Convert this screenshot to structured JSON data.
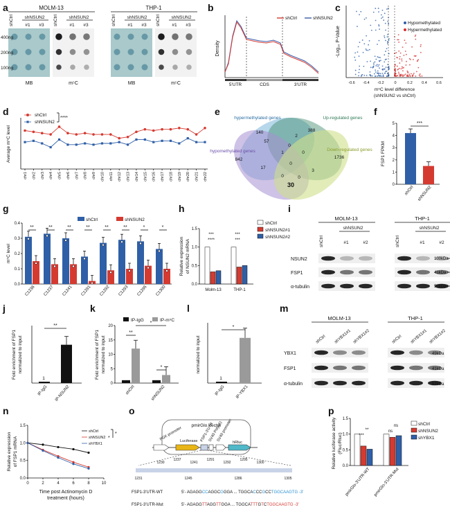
{
  "panels": {
    "a": {
      "letter": "a",
      "groups": [
        "MOLM-13",
        "THP-1"
      ],
      "sub_header": "shNSUN2",
      "lanes": [
        "shCtrl",
        "#1",
        "#3"
      ],
      "rows": [
        "400ng",
        "200ng",
        "100ng"
      ],
      "stains": [
        "MB",
        "m⁵C"
      ]
    },
    "b": {
      "letter": "b",
      "ylabel": "Density",
      "legend": [
        "shCtrl",
        "shNSUN2"
      ],
      "regions": [
        "5'UTR",
        "CDS",
        "3'UTR"
      ]
    },
    "c": {
      "letter": "c",
      "ylabel": "-Log₁₀ P-Value",
      "xlabel1": "m⁵C level difference",
      "xlabel2": "(shNSUN2 vs shCtrl)",
      "legend": [
        "Hypomethylated",
        "Hypermethylated"
      ],
      "ticks": [
        "-0.6",
        "-0.4",
        "-0.2",
        "0",
        "0.2",
        "0.4",
        "0.6"
      ],
      "colors": {
        "hypo": "#2d5fa8",
        "hyper": "#d62f2f"
      }
    },
    "d": {
      "letter": "d",
      "ylabel": "Average m⁵C level",
      "legend": [
        "shCtrl",
        "shNSUN2"
      ],
      "sig": "****",
      "chart_data": {
        "type": "line",
        "categories": [
          "chr1",
          "chr2",
          "chr3",
          "chr4",
          "chr5",
          "chr6",
          "chr7",
          "chr8",
          "chr9",
          "chr10",
          "chr11",
          "chr12",
          "chr13",
          "chr14",
          "chr15",
          "chr16",
          "chr17",
          "chr18",
          "chr19",
          "chr20",
          "chr21",
          "chr22"
        ],
        "series": [
          {
            "name": "shCtrl",
            "values": [
              0.3,
              0.29,
              0.28,
              0.27,
              0.33,
              0.28,
              0.27,
              0.28,
              0.27,
              0.27,
              0.27,
              0.24,
              0.25,
              0.29,
              0.31,
              0.3,
              0.31,
              0.31,
              0.32,
              0.31,
              0.27,
              0.32
            ]
          },
          {
            "name": "shNSUN2",
            "values": [
              0.21,
              0.22,
              0.2,
              0.17,
              0.23,
              0.19,
              0.19,
              0.2,
              0.19,
              0.2,
              0.2,
              0.21,
              0.19,
              0.23,
              0.23,
              0.21,
              0.22,
              0.22,
              0.2,
              0.24,
              0.21,
              0.21
            ]
          }
        ]
      }
    },
    "e": {
      "letter": "e",
      "sets": [
        "hypermethylated genes",
        "Up-regulated genes",
        "hypomethylated genes",
        "Down-regulated genes"
      ],
      "numbers": [
        "140",
        "388",
        "57",
        "2",
        "0",
        "842",
        "1",
        "0",
        "1736",
        "17",
        "0",
        "0",
        "3",
        "0",
        "30"
      ]
    },
    "f": {
      "letter": "f",
      "ylabel": "FSP1 FPKM",
      "sig": "***",
      "chart_data": {
        "type": "bar",
        "categories": [
          "shCtrl",
          "shNSUN2"
        ],
        "values": [
          4.2,
          1.5
        ],
        "ylim": [
          0,
          5
        ],
        "yticks": [
          "0",
          "1",
          "2",
          "3",
          "4",
          "5"
        ]
      }
    },
    "g": {
      "letter": "g",
      "ylabel": "m⁵C level",
      "legend": [
        "shCtrl",
        "shNSUN2"
      ],
      "sig": [
        "**",
        "**",
        "**",
        "**",
        "**",
        "**",
        "*",
        "*"
      ],
      "chart_data": {
        "type": "bar",
        "categories": [
          "C1236",
          "C1237",
          "C1241",
          "C1291",
          "C1292",
          "C1293",
          "C1295",
          "C1300"
        ],
        "series": [
          {
            "name": "shCtrl",
            "values": [
              0.31,
              0.33,
              0.3,
              0.18,
              0.27,
              0.29,
              0.28,
              0.23
            ]
          },
          {
            "name": "shNSUN2",
            "values": [
              0.15,
              0.13,
              0.13,
              0.02,
              0.09,
              0.1,
              0.12,
              0.1
            ]
          }
        ],
        "ylim": [
          0,
          0.4
        ],
        "yticks": [
          "0.0",
          "0.1",
          "0.2",
          "0.3",
          "0.4"
        ]
      }
    },
    "h": {
      "letter": "h",
      "ylabel1": "Relative expression",
      "ylabel2": "of NSUN2 mRNA",
      "legend": [
        "shCtrl",
        "shNSUN2#1",
        "shNSUN2#2"
      ],
      "sig_top": [
        "***",
        "****",
        "***",
        "***"
      ],
      "chart_data": {
        "type": "bar",
        "categories": [
          "Molm-13",
          "THP-1"
        ],
        "series": [
          {
            "name": "shCtrl",
            "values": [
              1.0,
              1.0
            ]
          },
          {
            "name": "shNSUN2#1",
            "values": [
              0.33,
              0.46
            ]
          },
          {
            "name": "shNSUN2#2",
            "values": [
              0.36,
              0.5
            ]
          }
        ],
        "ylim": [
          0,
          1.5
        ],
        "yticks": [
          "0.0",
          "0.5",
          "1.0",
          "1.5"
        ]
      }
    },
    "i": {
      "letter": "i",
      "groups": [
        "MOLM-13",
        "THP-1"
      ],
      "sub_header": "shNSUN2",
      "lanes": [
        "shCtrl",
        "#1",
        "#2"
      ],
      "rows": [
        "NSUN2",
        "FSP1",
        "α-tubulin"
      ],
      "sizes": [
        "100kDa",
        "41kDa",
        "52kDa"
      ]
    },
    "j": {
      "letter": "j",
      "ylabel1": "Fold enrichment of FSP1",
      "ylabel2": "normalized to input",
      "sig": "**",
      "bar_label": "1",
      "chart_data": {
        "type": "bar",
        "categories": [
          "IP-IgG",
          "IP-NSUN2"
        ],
        "values": [
          1,
          160
        ]
      }
    },
    "k": {
      "letter": "k",
      "ylabel1": "Fold enrichment of FSP1",
      "ylabel2": "normalized to input",
      "legend": [
        "IP-IgG",
        "IP-m⁵C"
      ],
      "sig": [
        "**",
        "*",
        "*"
      ],
      "chart_data": {
        "type": "bar",
        "categories": [
          "shCtrl",
          "shNSUN2"
        ],
        "series": [
          {
            "name": "IP-IgG",
            "values": [
              1,
              1
            ]
          },
          {
            "name": "IP-m⁵C",
            "values": [
              12,
              2.8
            ]
          }
        ],
        "ylim": [
          0,
          20
        ],
        "yticks": [
          "0",
          "5",
          "10",
          "15",
          "20"
        ]
      }
    },
    "l": {
      "letter": "l",
      "ylabel": "normalized to input",
      "sig": "*",
      "bar_label": "1",
      "chart_data": {
        "type": "bar",
        "categories": [
          "IP-IgG",
          "IP-YBX1"
        ],
        "values": [
          1,
          195
        ]
      }
    },
    "m": {
      "letter": "m",
      "groups": [
        "MOLM-13",
        "THP-1"
      ],
      "lanes": [
        "shCtrl",
        "shYBX1#1",
        "shYBX1#2"
      ],
      "rows": [
        "YBX1",
        "FSP1",
        "α-tubulin"
      ],
      "sizes": [
        "49kDa",
        "41kDa",
        "52kDa"
      ]
    },
    "n": {
      "letter": "n",
      "ylabel1": "Relative expression",
      "ylabel2": "of FSP1 mRNA",
      "xlabel1": "Time post Actinomycin D",
      "xlabel2": "treatment (hours)",
      "legend": [
        "shCtrl",
        "shNSUN2",
        "shYBX1"
      ],
      "sig": [
        "*",
        "*"
      ],
      "chart_data": {
        "type": "line",
        "x": [
          0,
          2,
          4,
          6,
          8
        ],
        "series": [
          {
            "name": "shCtrl",
            "values": [
              1.0,
              0.95,
              0.88,
              0.82,
              0.72
            ]
          },
          {
            "name": "shNSUN2",
            "values": [
              1.0,
              0.8,
              0.62,
              0.45,
              0.31
            ]
          },
          {
            "name": "shYBX1",
            "values": [
              1.0,
              0.78,
              0.58,
              0.4,
              0.27
            ]
          }
        ],
        "ylim": [
          0,
          1.5
        ],
        "yticks": [
          "0.0",
          "0.5",
          "1.0",
          "1.5"
        ],
        "xticks": [
          "0",
          "2",
          "4",
          "6",
          "8",
          "10"
        ]
      }
    },
    "o": {
      "letter": "o",
      "vector": "pmirGlo Vector",
      "elements": [
        "PGK promoter",
        "Luciferase",
        "FSP1-3'UTR",
        "SV40 Poly(A)",
        "SV40 promoter",
        "hRluc"
      ],
      "positions_top": [
        "1230",
        "1237",
        "1241",
        "1291",
        "1292",
        "1295",
        "1300"
      ],
      "positions_bottom": [
        "1231",
        "1245",
        "1286",
        "1305"
      ],
      "wt_label": "FSP1-3'UTR-WT",
      "wt_seq": [
        "5'- AGAGG",
        "CC",
        "AGGC",
        "G",
        "GGA ... TGGCA",
        "C",
        "CC",
        "G",
        "CC",
        "TGGCAAGTG -3'"
      ],
      "mut_label": "FSP1-3'UTR-Mut",
      "mut_seq": [
        "5'- AGAGG",
        "TT",
        "AGG",
        "TT",
        "GGA ... TGGCA",
        "TTT",
        "G",
        "T",
        "C",
        "TGGCAAGTG -3'"
      ]
    },
    "p": {
      "letter": "p",
      "ylabel1": "Relative luciferase activity",
      "ylabel2": "(Fluc/Rluc)",
      "legend": [
        "shCtrl",
        "shNSUN2",
        "shYBX1"
      ],
      "sig": [
        "***",
        "**",
        "ns",
        "ns"
      ],
      "chart_data": {
        "type": "bar",
        "categories": [
          "pmirGlo-3'UTR-WT",
          "pmirGlo-3'UTR-Mut"
        ],
        "series": [
          {
            "name": "shCtrl",
            "values": [
              1.0,
              1.0
            ]
          },
          {
            "name": "shNSUN2",
            "values": [
              0.62,
              0.9
            ]
          },
          {
            "name": "shYBX1",
            "values": [
              0.52,
              0.95
            ]
          }
        ],
        "ylim": [
          0,
          1.5
        ],
        "yticks": [
          "0.0",
          "0.5",
          "1.0",
          "1.5"
        ]
      }
    }
  },
  "colors": {
    "ctrl": "#2f5fa7",
    "nsun": "#d53a31",
    "ybx": "#3b5ea8",
    "gray": "#9a9a9a",
    "dark": "#111111"
  }
}
